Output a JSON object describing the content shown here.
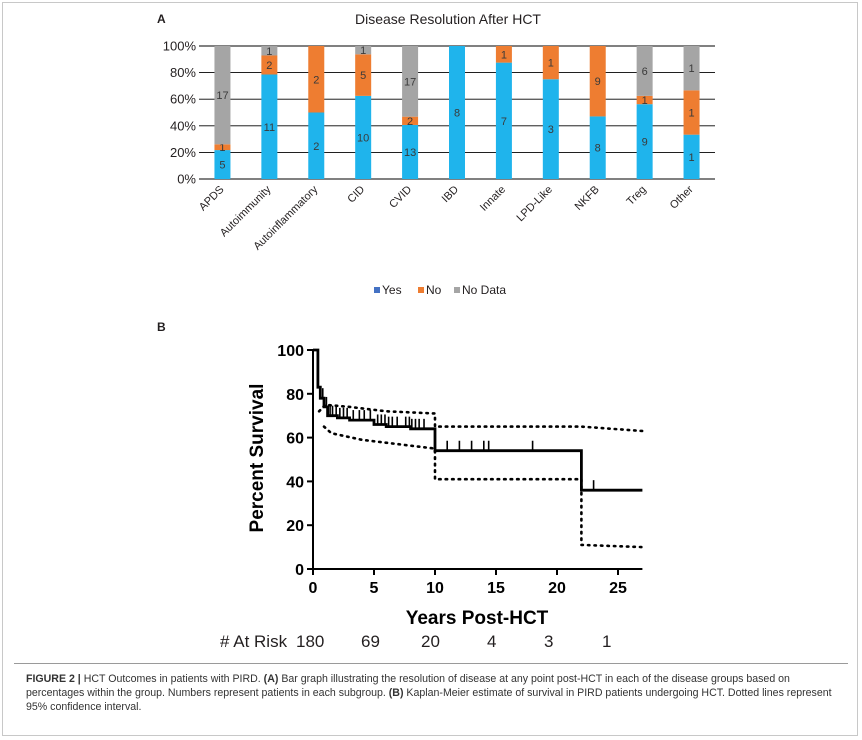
{
  "panel_a_label": "A",
  "panel_b_label": "B",
  "caption": {
    "figure_label": "FIGURE 2 |",
    "text_1": " HCT Outcomes in patients with PIRD. ",
    "a_label": "(A)",
    "text_2": " Bar graph illustrating the resolution of disease at any point post-HCT in each of the disease groups based on percentages within the group. Numbers represent patients in each subgroup. ",
    "b_label": "(B)",
    "text_3": " Kaplan-Meier estimate of survival in PIRD patients undergoing HCT. Dotted lines represent 95% confidence interval."
  },
  "chart_data": [
    {
      "type": "bar",
      "stacked": true,
      "normalized_percent": true,
      "title": "Disease Resolution After HCT",
      "ylim": [
        0,
        100
      ],
      "yticks": [
        "0%",
        "20%",
        "40%",
        "60%",
        "80%",
        "100%"
      ],
      "categories": [
        "APDS",
        "Autoimmunity",
        "Autoinflammatory",
        "CID",
        "CVID",
        "IBD",
        "Innate",
        "LPD-Like",
        "NKFB",
        "Treg",
        "Other"
      ],
      "series": [
        {
          "name": "Yes",
          "color": "#1fb4ec",
          "values": [
            5,
            11,
            2,
            10,
            13,
            8,
            7,
            3,
            8,
            9,
            1
          ]
        },
        {
          "name": "No",
          "color": "#ee7d31",
          "values": [
            1,
            2,
            2,
            5,
            2,
            0,
            1,
            1,
            9,
            1,
            1
          ]
        },
        {
          "name": "No Data",
          "color": "#a5a5a5",
          "values": [
            17,
            1,
            0,
            1,
            17,
            0,
            0,
            0,
            0,
            6,
            1
          ]
        }
      ],
      "legend": {
        "placement": "bottom",
        "yes_color": "#4472c4"
      },
      "grid": true
    },
    {
      "type": "line",
      "subtype": "kaplan-meier",
      "xlabel": "Years Post-HCT",
      "ylabel": "Percent Survival",
      "xlim": [
        0,
        27
      ],
      "ylim": [
        0,
        100
      ],
      "xticks": [
        0,
        5,
        10,
        15,
        20,
        25
      ],
      "yticks": [
        0,
        20,
        40,
        60,
        80,
        100
      ],
      "survival": [
        [
          0,
          100
        ],
        [
          0.4,
          100
        ],
        [
          0.4,
          83
        ],
        [
          0.6,
          83
        ],
        [
          0.6,
          78
        ],
        [
          0.9,
          78
        ],
        [
          0.9,
          74
        ],
        [
          1.2,
          74
        ],
        [
          1.2,
          70
        ],
        [
          2,
          70
        ],
        [
          2,
          69
        ],
        [
          3,
          69
        ],
        [
          3,
          68
        ],
        [
          5,
          68
        ],
        [
          5,
          66
        ],
        [
          6,
          66
        ],
        [
          6,
          65
        ],
        [
          8,
          65
        ],
        [
          8,
          64
        ],
        [
          10,
          64
        ],
        [
          10,
          54
        ],
        [
          22,
          54
        ],
        [
          22,
          36
        ],
        [
          27,
          36
        ]
      ],
      "ci_upper": [
        [
          0.5,
          72
        ],
        [
          1,
          75
        ],
        [
          3,
          74
        ],
        [
          6,
          72
        ],
        [
          10,
          71
        ],
        [
          10,
          65
        ],
        [
          22,
          65
        ],
        [
          27,
          63
        ]
      ],
      "ci_lower": [
        [
          0.9,
          65
        ],
        [
          1.5,
          62
        ],
        [
          4,
          59
        ],
        [
          7,
          57
        ],
        [
          10,
          55
        ],
        [
          10,
          41
        ],
        [
          22,
          41
        ],
        [
          22,
          11
        ],
        [
          27,
          10
        ]
      ],
      "censor_marks": [
        0.8,
        1.1,
        1.4,
        1.6,
        1.9,
        2.2,
        2.5,
        2.8,
        3.3,
        3.8,
        4.2,
        4.7,
        5.3,
        5.6,
        5.9,
        6.2,
        6.5,
        6.9,
        7.6,
        7.9,
        8.1,
        8.4,
        8.7,
        9.1,
        11,
        12,
        13,
        14,
        14.4,
        18,
        23
      ],
      "at_risk": {
        "label": "# At Risk",
        "counts": [
          "180",
          "69",
          "20",
          "4",
          "3",
          "1"
        ]
      }
    }
  ]
}
